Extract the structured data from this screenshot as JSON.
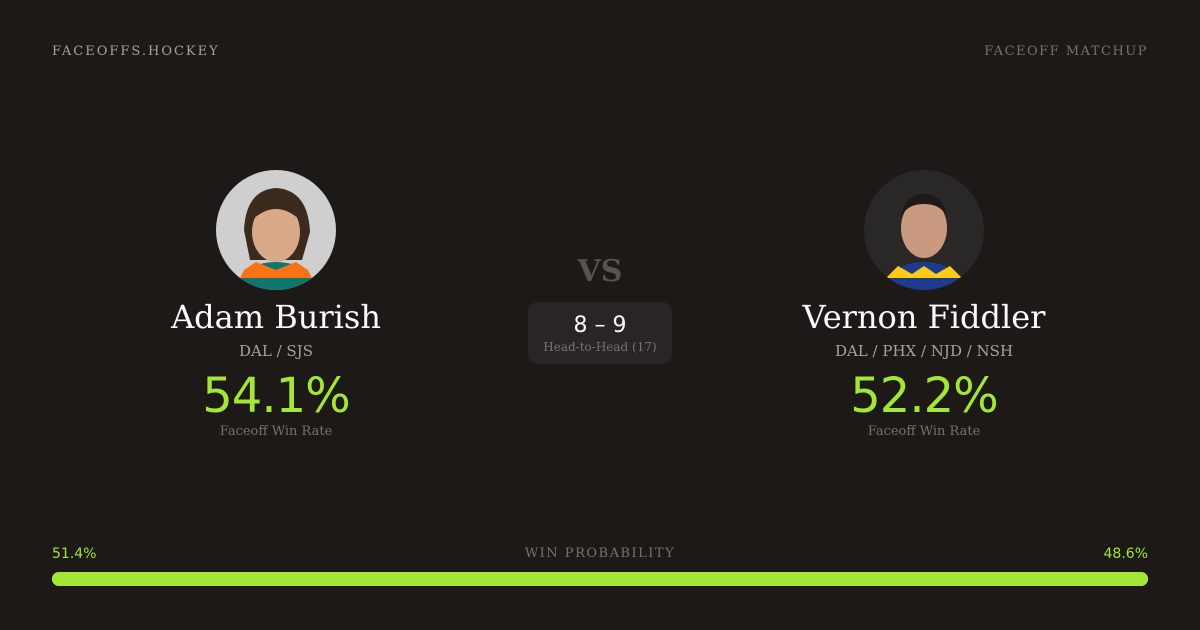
{
  "header": {
    "brand": "FACEOFFS.HOCKEY",
    "tag": "FACEOFF MATCHUP"
  },
  "players": [
    {
      "name": "Adam Burish",
      "teams": "DAL / SJS",
      "win_rate": "54.1%",
      "win_rate_label": "Faceoff Win Rate",
      "jersey_colors": [
        "#f97316",
        "#0f766e"
      ]
    },
    {
      "name": "Vernon Fiddler",
      "teams": "DAL / PHX / NJD / NSH",
      "win_rate": "52.2%",
      "win_rate_label": "Faceoff Win Rate",
      "jersey_colors": [
        "#facc15",
        "#1e3a8a"
      ]
    }
  ],
  "vs": "VS",
  "head_to_head": {
    "score": "8 – 9",
    "label": "Head-to-Head (17)"
  },
  "win_probability": {
    "title": "WIN PROBABILITY",
    "left": "51.4%",
    "right": "48.6%",
    "left_value": 51.4,
    "right_value": 48.6,
    "color": "#a3e635"
  }
}
